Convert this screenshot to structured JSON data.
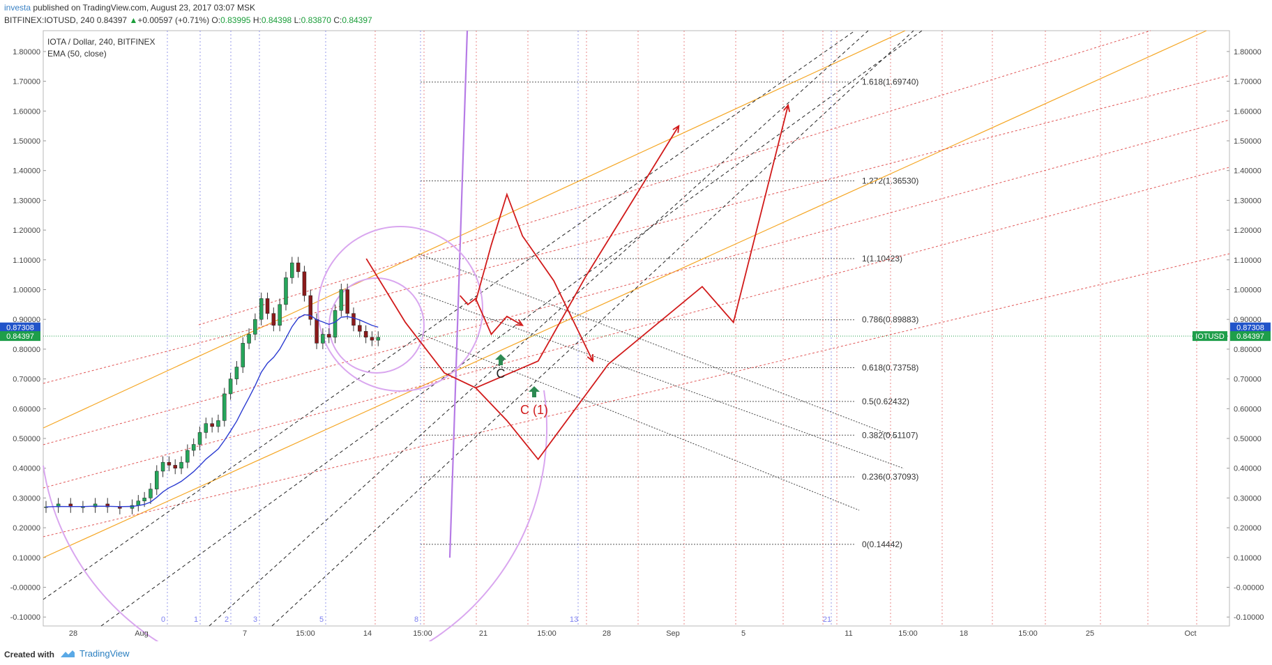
{
  "header": {
    "author": "investa",
    "published": " published on TradingView.com, August 23, 2017 03:07 MSK",
    "symbol_line_prefix": "BITFINEX:IOTUSD, 240 ",
    "last": "0.84397",
    "change_arrow": "▲",
    "change": "+0.00597 (+0.71%)",
    "o_label": "O:",
    "o_value": "0.83995",
    "h_label": "H:",
    "h_value": "0.84398",
    "l_label": "L:",
    "l_value": "0.83870",
    "c_label": "C:",
    "c_value": "0.84397"
  },
  "legend": {
    "title": "IOTA / Dollar, 240, BITFINEX",
    "indicator": "EMA (50, close)"
  },
  "footer": {
    "created_with": "Created with",
    "brand": "TradingView"
  },
  "colors": {
    "ema": "#2b3bd1",
    "candle_up": "#26a65b",
    "candle_down": "#8b1a1a",
    "forecast": "#d11a1a",
    "fib_orange": "#f5a623",
    "fib_red": "#e05555",
    "arc": "#d9a6ef",
    "price_blue": "#2154c9",
    "price_green": "#1e9e4a"
  },
  "chart_data": {
    "type": "candlestick",
    "title": "IOTA / Dollar, 240, BITFINEX",
    "ylim": [
      -0.13,
      1.87
    ],
    "y_ticks": [
      "1.80000",
      "1.70000",
      "1.60000",
      "1.50000",
      "1.40000",
      "1.30000",
      "1.20000",
      "1.10000",
      "1.00000",
      "0.90000",
      "0.80000",
      "0.70000",
      "0.60000",
      "0.50000",
      "0.40000",
      "0.30000",
      "0.20000",
      "0.10000",
      "-0.00000",
      "-0.10000"
    ],
    "x_ticks": [
      "28",
      "Aug",
      "7",
      "15:00",
      "14",
      "15:00",
      "21",
      "15:00",
      "28",
      "Sep",
      "5",
      "11",
      "15:00",
      "18",
      "15:00",
      "25",
      "Oct"
    ],
    "time_cycle_labels": [
      "0",
      "1",
      "2",
      "3",
      "5",
      "8",
      "13",
      "21"
    ],
    "price_labels": [
      {
        "label": "0.87308",
        "value": 0.87308,
        "color": "blue"
      },
      {
        "label": "0.84397",
        "value": 0.84397,
        "color": "green"
      }
    ],
    "symbol_label": "IOTUSD",
    "fib_levels": [
      {
        "ratio": "1.618",
        "label": "1.618(1.69740)",
        "value": 1.6974
      },
      {
        "ratio": "1.272",
        "label": "1.272(1.36530)",
        "value": 1.3653
      },
      {
        "ratio": "1",
        "label": "1(1.10423)",
        "value": 1.10423
      },
      {
        "ratio": "0.786",
        "label": "0.786(0.89883)",
        "value": 0.89883
      },
      {
        "ratio": "0.618",
        "label": "0.618(0.73758)",
        "value": 0.73758
      },
      {
        "ratio": "0.5",
        "label": "0.5(0.62432)",
        "value": 0.62432
      },
      {
        "ratio": "0.382",
        "label": "0.382(0.51107)",
        "value": 0.51107
      },
      {
        "ratio": "0.236",
        "label": "0.236(0.37093)",
        "value": 0.37093
      },
      {
        "ratio": "0",
        "label": "0(0.14442)",
        "value": 0.14442
      }
    ],
    "annotations": [
      {
        "text": "C",
        "color": "black"
      },
      {
        "text": "C (1)",
        "color": "red"
      }
    ],
    "price_path": [
      [
        0,
        0.27
      ],
      [
        2,
        0.28
      ],
      [
        4,
        0.27
      ],
      [
        6,
        0.27
      ],
      [
        8,
        0.28
      ],
      [
        10,
        0.27
      ],
      [
        12,
        0.265
      ],
      [
        14,
        0.275
      ],
      [
        15,
        0.29
      ],
      [
        16,
        0.3
      ],
      [
        17,
        0.33
      ],
      [
        18,
        0.39
      ],
      [
        19,
        0.42
      ],
      [
        20,
        0.41
      ],
      [
        21,
        0.4
      ],
      [
        22,
        0.42
      ],
      [
        23,
        0.46
      ],
      [
        24,
        0.48
      ],
      [
        25,
        0.52
      ],
      [
        26,
        0.55
      ],
      [
        27,
        0.54
      ],
      [
        28,
        0.56
      ],
      [
        29,
        0.65
      ],
      [
        30,
        0.7
      ],
      [
        31,
        0.74
      ],
      [
        32,
        0.82
      ],
      [
        33,
        0.85
      ],
      [
        34,
        0.9
      ],
      [
        35,
        0.97
      ],
      [
        36,
        0.92
      ],
      [
        37,
        0.88
      ],
      [
        38,
        0.95
      ],
      [
        39,
        1.04
      ],
      [
        40,
        1.09
      ],
      [
        41,
        1.06
      ],
      [
        42,
        0.98
      ],
      [
        43,
        0.9
      ],
      [
        44,
        0.82
      ],
      [
        45,
        0.85
      ],
      [
        46,
        0.84
      ],
      [
        47,
        0.93
      ],
      [
        48,
        1.0
      ],
      [
        49,
        0.92
      ],
      [
        50,
        0.88
      ],
      [
        51,
        0.86
      ],
      [
        52,
        0.84
      ],
      [
        53,
        0.83
      ],
      [
        54,
        0.84
      ]
    ],
    "forecast_paths": [
      [
        [
          41,
          1.104
        ],
        [
          46,
          0.89
        ],
        [
          51,
          0.72
        ],
        [
          55,
          0.67
        ],
        [
          59,
          0.56
        ],
        [
          63,
          0.43
        ],
        [
          72,
          0.75
        ],
        [
          84,
          1.01
        ],
        [
          88,
          0.89
        ],
        [
          95,
          1.62
        ]
      ],
      [
        [
          55,
          0.67
        ],
        [
          63,
          0.76
        ],
        [
          69,
          1.04
        ],
        [
          81,
          1.55
        ]
      ],
      [
        [
          53,
          0.98
        ],
        [
          54,
          0.95
        ],
        [
          55,
          0.97
        ],
        [
          57,
          0.85
        ],
        [
          59,
          0.91
        ],
        [
          61,
          0.88
        ]
      ],
      [
        [
          55,
          0.96
        ],
        [
          57,
          1.15
        ],
        [
          59,
          1.32
        ],
        [
          61,
          1.18
        ],
        [
          65,
          1.03
        ],
        [
          70,
          0.76
        ]
      ]
    ]
  }
}
